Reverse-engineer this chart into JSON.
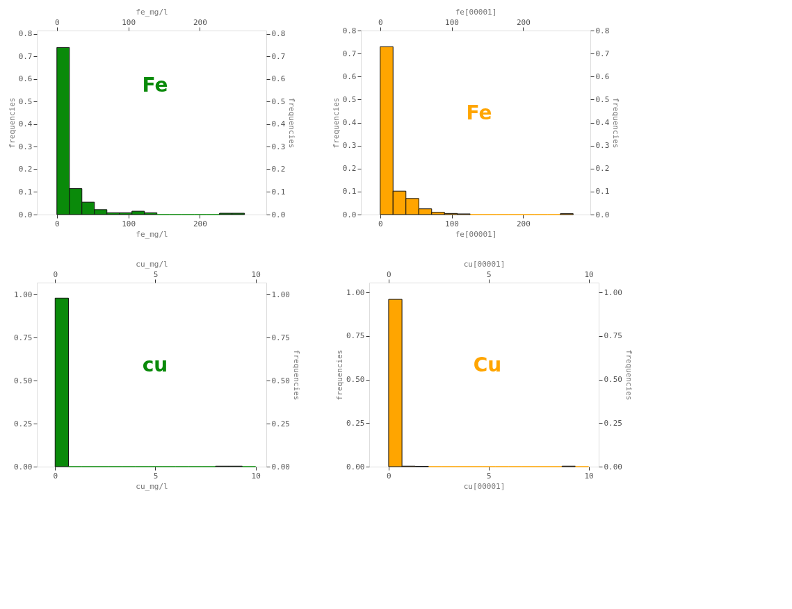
{
  "chart_data": [
    {
      "type": "histogram",
      "xlabel": "fe_mg/l",
      "x2label": "fe_mg/l",
      "ylabel": "frequencies",
      "y2label": "frequencies",
      "bins": [
        0,
        17.5,
        35,
        52.5,
        70,
        87.5,
        105,
        122.5,
        140,
        157.5,
        175,
        192.5,
        210,
        227.5,
        245,
        262.5
      ],
      "series": [
        {
          "color": "#0a8a0a",
          "values": [
            0.74,
            0.115,
            0.055,
            0.022,
            0.008,
            0.008,
            0.015,
            0.008,
            0,
            0,
            0,
            0,
            0,
            0.006,
            0.006
          ]
        }
      ],
      "xlim": [
        -28,
        293
      ],
      "xticks": [
        0,
        100,
        200
      ],
      "x2lim": [
        -28,
        293
      ],
      "x2ticks": [
        0,
        100,
        200
      ],
      "ylim": [
        0,
        0.815
      ],
      "yticks": [
        {
          "value": 0,
          "label": "0.0"
        },
        {
          "value": 0.1,
          "label": "0.1"
        },
        {
          "value": 0.2,
          "label": "0.2"
        },
        {
          "value": 0.3,
          "label": "0.3"
        },
        {
          "value": 0.4,
          "label": "0.4"
        },
        {
          "value": 0.5,
          "label": "0.5"
        },
        {
          "value": 0.6,
          "label": "0.6"
        },
        {
          "value": 0.7,
          "label": "0.7"
        },
        {
          "value": 0.8,
          "label": "0.8"
        }
      ],
      "y2lim": [
        0,
        0.815
      ],
      "y2ticks": [
        {
          "value": 0,
          "label": "0.0"
        },
        {
          "value": 0.1,
          "label": "0.1"
        },
        {
          "value": 0.2,
          "label": "0.2"
        },
        {
          "value": 0.3,
          "label": "0.3"
        },
        {
          "value": 0.4,
          "label": "0.4"
        },
        {
          "value": 0.5,
          "label": "0.5"
        },
        {
          "value": 0.6,
          "label": "0.6"
        },
        {
          "value": 0.7,
          "label": "0.7"
        },
        {
          "value": 0.8,
          "label": "0.8"
        }
      ],
      "grid": false,
      "annotations": [
        "Fe"
      ]
    },
    {
      "type": "histogram",
      "xlabel": "fe[00001]",
      "x2label": "fe[00001]",
      "ylabel": "frequencies",
      "y2label": "frequencies",
      "bins": [
        0,
        18,
        36,
        54,
        72,
        90,
        108,
        126,
        144,
        162,
        180,
        198,
        216,
        234,
        252,
        270
      ],
      "series": [
        {
          "color": "#ffa500",
          "values": [
            0.73,
            0.102,
            0.07,
            0.025,
            0.01,
            0.005,
            0.003,
            0,
            0,
            0,
            0,
            0,
            0,
            0,
            0.004
          ]
        }
      ],
      "xlim": [
        -27,
        294
      ],
      "xticks": [
        0,
        100,
        200
      ],
      "x2lim": [
        -27,
        294
      ],
      "x2ticks": [
        0,
        100,
        200
      ],
      "ylim": [
        0,
        0.8
      ],
      "yticks": [
        {
          "value": 0,
          "label": "0.0"
        },
        {
          "value": 0.1,
          "label": "0.1"
        },
        {
          "value": 0.2,
          "label": "0.2"
        },
        {
          "value": 0.3,
          "label": "0.3"
        },
        {
          "value": 0.4,
          "label": "0.4"
        },
        {
          "value": 0.5,
          "label": "0.5"
        },
        {
          "value": 0.6,
          "label": "0.6"
        },
        {
          "value": 0.7,
          "label": "0.7"
        },
        {
          "value": 0.8,
          "label": "0.8"
        }
      ],
      "y2lim": [
        0,
        0.8
      ],
      "y2ticks": [
        {
          "value": 0,
          "label": "0.0"
        },
        {
          "value": 0.1,
          "label": "0.1"
        },
        {
          "value": 0.2,
          "label": "0.2"
        },
        {
          "value": 0.3,
          "label": "0.3"
        },
        {
          "value": 0.4,
          "label": "0.4"
        },
        {
          "value": 0.5,
          "label": "0.5"
        },
        {
          "value": 0.6,
          "label": "0.6"
        },
        {
          "value": 0.7,
          "label": "0.7"
        },
        {
          "value": 0.8,
          "label": "0.8"
        }
      ],
      "grid": false,
      "annotations": [
        "Fe"
      ]
    },
    {
      "type": "histogram",
      "xlabel": "cu_mg/l",
      "x2label": "cu_mg/l",
      "y2label": "frequencies",
      "bins": [
        0,
        0.667,
        1.333,
        2,
        2.667,
        3.333,
        4,
        4.667,
        5.333,
        6,
        6.667,
        7.333,
        8,
        8.667,
        9.333,
        10
      ],
      "series": [
        {
          "color": "#0a8a0a",
          "values": [
            0.98,
            0,
            0,
            0,
            0,
            0,
            0,
            0,
            0,
            0,
            0,
            0,
            0.003,
            0.003,
            0
          ]
        }
      ],
      "xlim": [
        -0.91,
        10.53
      ],
      "xticks": [
        0,
        5,
        10
      ],
      "x2lim": [
        -0.91,
        10.53
      ],
      "x2ticks": [
        0,
        5,
        10
      ],
      "ylim": [
        0,
        1.07
      ],
      "yticks": [
        {
          "value": 0,
          "label": "0.00"
        },
        {
          "value": 0.25,
          "label": "0.25"
        },
        {
          "value": 0.5,
          "label": "0.50"
        },
        {
          "value": 0.75,
          "label": "0.75"
        },
        {
          "value": 1,
          "label": "1.00"
        }
      ],
      "y2lim": [
        0,
        1.07
      ],
      "y2ticks": [
        {
          "value": 0,
          "label": "0.00"
        },
        {
          "value": 0.25,
          "label": "0.25"
        },
        {
          "value": 0.5,
          "label": "0.50"
        },
        {
          "value": 0.75,
          "label": "0.75"
        },
        {
          "value": 1,
          "label": "1.00"
        }
      ],
      "grid": false,
      "annotations": [
        "cu"
      ]
    },
    {
      "type": "histogram",
      "xlabel": "cu[00001]",
      "x2label": "cu[00001]",
      "ylabel": "frequencies",
      "y2label": "frequencies",
      "bins": [
        0,
        0.667,
        1.333,
        2,
        2.667,
        3.333,
        4,
        4.667,
        5.333,
        6,
        6.667,
        7.333,
        8,
        8.667,
        9.333,
        10
      ],
      "series": [
        {
          "color": "#ffa500",
          "values": [
            0.96,
            0.003,
            0.002,
            0,
            0,
            0,
            0,
            0,
            0,
            0,
            0,
            0,
            0,
            0.003,
            0
          ]
        }
      ],
      "xlim": [
        -0.97,
        10.5
      ],
      "xticks": [
        0,
        5,
        10
      ],
      "x2lim": [
        -0.97,
        10.5
      ],
      "x2ticks": [
        0,
        5,
        10
      ],
      "ylim": [
        0,
        1.056
      ],
      "yticks": [
        {
          "value": 0,
          "label": "0.00"
        },
        {
          "value": 0.25,
          "label": "0.25"
        },
        {
          "value": 0.5,
          "label": "0.50"
        },
        {
          "value": 0.75,
          "label": "0.75"
        },
        {
          "value": 1,
          "label": "1.00"
        }
      ],
      "y2lim": [
        0,
        1.056
      ],
      "y2ticks": [
        {
          "value": 0,
          "label": "0.00"
        },
        {
          "value": 0.25,
          "label": "0.25"
        },
        {
          "value": 0.5,
          "label": "0.50"
        },
        {
          "value": 0.75,
          "label": "0.75"
        },
        {
          "value": 1,
          "label": "1.00"
        }
      ],
      "grid": false,
      "annotations": [
        "Cu"
      ]
    }
  ]
}
